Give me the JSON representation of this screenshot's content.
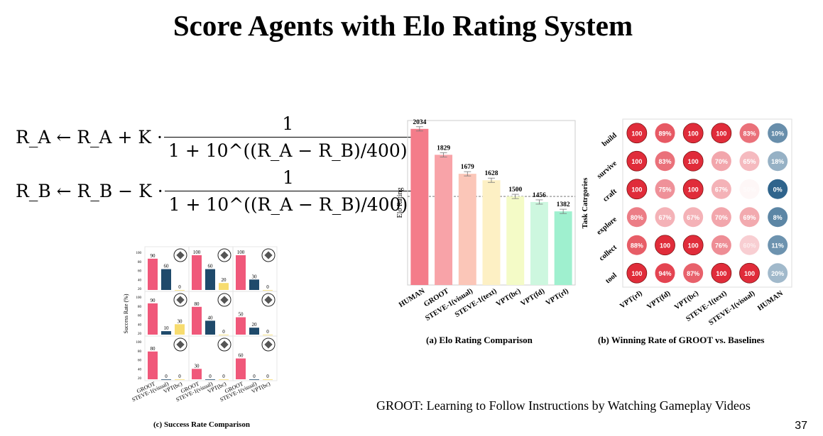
{
  "slide": {
    "title": "Score Agents with Elo Rating System",
    "footer": "GROOT: Learning to Follow Instructions by Watching Gameplay Videos",
    "page_number": "37"
  },
  "formulas": [
    {
      "lhs": "R_A ← R_A + K ·",
      "numerator": "1",
      "denominator": "1 + 10^((R_A − R_B)/400)",
      "trail": ","
    },
    {
      "lhs": "R_B ← R_B − K ·",
      "numerator": "1",
      "denominator": "1 + 10^((R_A − R_B)/400)",
      "trail": ","
    }
  ],
  "chart_data": [
    {
      "type": "bar",
      "title": "(a) Elo Rating Comparison",
      "ylabel": "Elo Rating",
      "categories": [
        "HUMAN",
        "GROOT",
        "STEVE-1(visual)",
        "STEVE-1(text)",
        "VPT(bc)",
        "VPT(fd)",
        "VPT(rl)"
      ],
      "values": [
        2034,
        1829,
        1679,
        1628,
        1500,
        1456,
        1382
      ],
      "colors": [
        "#f47c8a",
        "#f8a3a8",
        "#fbc6b8",
        "#fdf0c4",
        "#f4fbc7",
        "#cdf7df",
        "#9ff0cf"
      ],
      "reference_line": 1500,
      "ylim": [
        800,
        2100
      ]
    },
    {
      "type": "heatmap",
      "title": "(b) Winning Rate of GROOT vs. Baselines",
      "ylabel": "Task Catrgories",
      "rows": [
        "build",
        "survive",
        "craft",
        "explore",
        "collect",
        "tool"
      ],
      "cols": [
        "VPT(rl)",
        "VPT(fd)",
        "VPT(bc)",
        "STEVE-1(text)",
        "STEVE-1(visual)",
        "HUMAN"
      ],
      "values": [
        [
          100,
          89,
          100,
          100,
          83,
          10
        ],
        [
          100,
          83,
          100,
          70,
          65,
          18
        ],
        [
          100,
          75,
          100,
          67,
          50,
          0
        ],
        [
          80,
          67,
          67,
          70,
          69,
          8
        ],
        [
          88,
          100,
          100,
          76,
          60,
          11
        ],
        [
          100,
          94,
          87,
          100,
          100,
          20
        ]
      ]
    },
    {
      "type": "bar",
      "title": "(c) Success Rate Comparison",
      "ylabel": "Success Rate (%)",
      "categories": [
        "GROOT",
        "STEVE-1(visual)",
        "VPT(bc)"
      ],
      "yticks": [
        "100",
        "80",
        "60",
        "40",
        "20"
      ],
      "panels": [
        {
          "values": [
            90,
            60,
            0
          ],
          "icon": "block-icon"
        },
        {
          "values": [
            100,
            60,
            20
          ],
          "icon": "bow-icon"
        },
        {
          "values": [
            100,
            30,
            0
          ],
          "icon": "sword-icon"
        },
        {
          "values": [
            90,
            10,
            30
          ],
          "icon": "furnace-icon"
        },
        {
          "values": [
            80,
            40,
            0
          ],
          "icon": "rope-icon"
        },
        {
          "values": [
            50,
            20,
            0
          ],
          "icon": "ore-icon"
        },
        {
          "values": [
            80,
            0,
            0
          ],
          "icon": "mushroom-icon"
        },
        {
          "values": [
            30,
            0,
            0
          ],
          "icon": "tool-icon"
        },
        {
          "values": [
            60,
            0,
            0
          ],
          "icon": "potion-icon"
        }
      ],
      "colors": [
        "#f0587a",
        "#1f4a6b",
        "#f7dc6f"
      ]
    }
  ]
}
